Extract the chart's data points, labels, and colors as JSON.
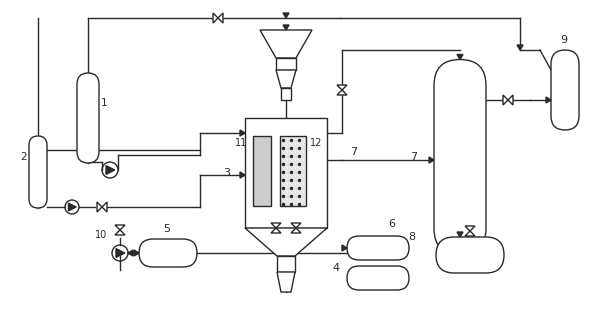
{
  "bg_color": "#ffffff",
  "line_color": "#2a2a2a",
  "lw": 1.0
}
